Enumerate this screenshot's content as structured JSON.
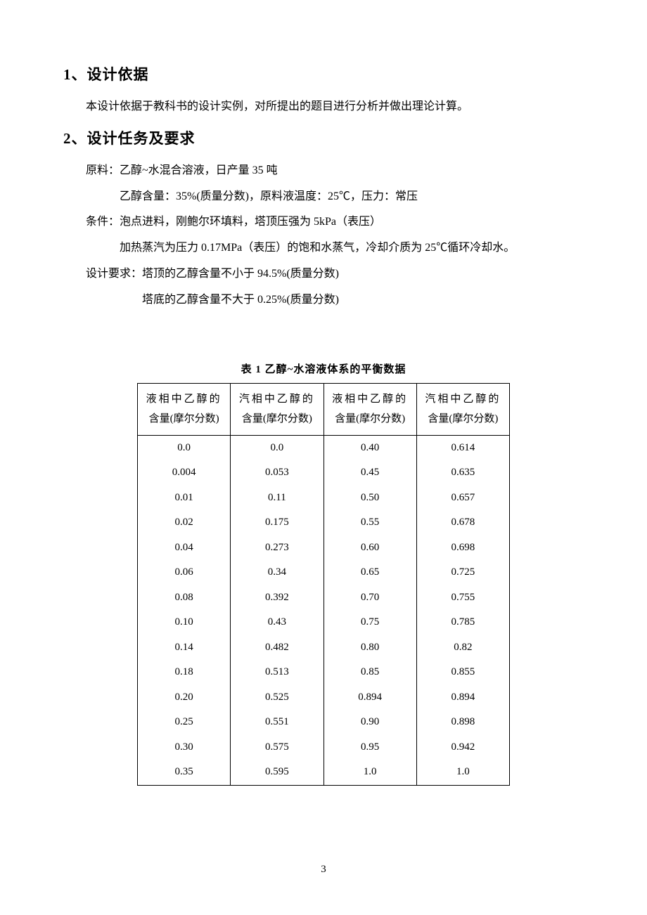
{
  "section1": {
    "heading": "1、设计依据",
    "p1": "本设计依据于教科书的设计实例，对所提出的题目进行分析并做出理论计算。"
  },
  "section2": {
    "heading": "2、设计任务及要求",
    "raw1": "原料：乙醇~水混合溶液，日产量 35 吨",
    "raw2": "乙醇含量：35%(质量分数)，原料液温度：25℃，压力：常压",
    "cond1": "条件：泡点进料，刚鲍尔环填料，塔顶压强为 5kPa（表压）",
    "cond2": "加热蒸汽为压力 0.17MPa（表压）的饱和水蒸气，冷却介质为 25℃循环冷却水。",
    "req1": "设计要求：塔顶的乙醇含量不小于 94.5%(质量分数)",
    "req2": "塔底的乙醇含量不大于 0.25%(质量分数)"
  },
  "table": {
    "caption": "表 1  乙醇~水溶液体系的平衡数据",
    "headers": {
      "h1a": "液相中乙醇的",
      "h1b": "含量(摩尔分数)",
      "h2a": "汽相中乙醇的",
      "h2b": "含量(摩尔分数)",
      "h3a": "液相中乙醇的",
      "h3b": "含量(摩尔分数)",
      "h4a": "汽相中乙醇的",
      "h4b": "含量(摩尔分数)"
    },
    "rows": [
      [
        "0.0",
        "0.0",
        "0.40",
        "0.614"
      ],
      [
        "0.004",
        "0.053",
        "0.45",
        "0.635"
      ],
      [
        "0.01",
        "0.11",
        "0.50",
        "0.657"
      ],
      [
        "0.02",
        "0.175",
        "0.55",
        "0.678"
      ],
      [
        "0.04",
        "0.273",
        "0.60",
        "0.698"
      ],
      [
        "0.06",
        "0.34",
        "0.65",
        "0.725"
      ],
      [
        "0.08",
        "0.392",
        "0.70",
        "0.755"
      ],
      [
        "0.10",
        "0.43",
        "0.75",
        "0.785"
      ],
      [
        "0.14",
        "0.482",
        "0.80",
        "0.82"
      ],
      [
        "0.18",
        "0.513",
        "0.85",
        "0.855"
      ],
      [
        "0.20",
        "0.525",
        "0.894",
        "0.894"
      ],
      [
        "0.25",
        "0.551",
        "0.90",
        "0.898"
      ],
      [
        "0.30",
        "0.575",
        "0.95",
        "0.942"
      ],
      [
        "0.35",
        "0.595",
        "1.0",
        "1.0"
      ]
    ]
  },
  "pageNumber": "3"
}
